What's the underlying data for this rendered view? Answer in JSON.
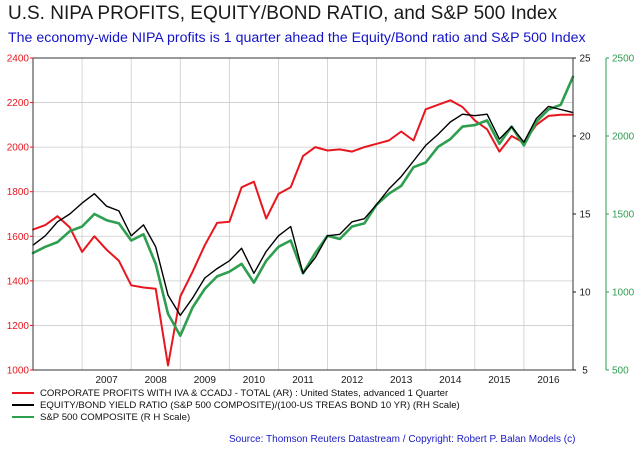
{
  "title": "U.S. NIPA PROFITS, EQUITY/BOND RATIO, and S&P 500 Index",
  "subtitle": "The economy-wide NIPA profits is 1 quarter ahead the Equity/Bond ratio and S&P 500 Index",
  "source": "Source: Thomson Reuters Datastream / Copyright: Robert P. Balan Models (c)",
  "colors": {
    "profits": "#e8161e",
    "ratio": "#000000",
    "sp500": "#2e9e4f",
    "left_axis": "#e8161e",
    "right_axis_inner": "#1a1a1a",
    "right_axis_outer": "#2e9e4f",
    "grid": "#cccccc"
  },
  "legend": [
    {
      "label": "CORPORATE PROFITS WITH IVA & CCADJ - TOTAL (AR) : United States, advanced 1 Quarter",
      "color": "#e8161e"
    },
    {
      "label": "EQUITY/BOND YIELD RATIO (S&P 500 COMPOSITE)/(100-US TREAS BOND 10 YR) (RH Scale)",
      "color": "#000000"
    },
    {
      "label": "S&P 500 COMPOSITE (R H Scale)",
      "color": "#2e9e4f"
    }
  ],
  "chart_data": {
    "type": "line",
    "x_range": [
      2006.0,
      2017.0
    ],
    "x_tick_labels": [
      "2007",
      "2008",
      "2009",
      "2010",
      "2011",
      "2012",
      "2013",
      "2014",
      "2015",
      "2016"
    ],
    "left_axis": {
      "ylim": [
        1000,
        2400
      ],
      "ticks": [
        1000,
        1200,
        1400,
        1600,
        1800,
        2000,
        2200,
        2400
      ]
    },
    "right_axis_inner": {
      "ylim": [
        5,
        25
      ],
      "ticks": [
        5,
        10,
        15,
        20,
        25
      ]
    },
    "right_axis_outer": {
      "ylim": [
        500,
        2500
      ],
      "ticks": [
        500,
        1000,
        1500,
        2000,
        2500
      ]
    },
    "grid": true,
    "series": [
      {
        "name": "CORPORATE PROFITS WITH IVA & CCADJ - TOTAL (AR) : United States, advanced 1 Quarter",
        "axis": "left",
        "x": [
          2006.0,
          2006.25,
          2006.5,
          2006.75,
          2007.0,
          2007.25,
          2007.5,
          2007.75,
          2008.0,
          2008.25,
          2008.5,
          2008.75,
          2009.0,
          2009.25,
          2009.5,
          2009.75,
          2010.0,
          2010.25,
          2010.5,
          2010.75,
          2011.0,
          2011.25,
          2011.5,
          2011.75,
          2012.0,
          2012.25,
          2012.5,
          2012.75,
          2013.0,
          2013.25,
          2013.5,
          2013.75,
          2014.0,
          2014.25,
          2014.5,
          2014.75,
          2015.0,
          2015.25,
          2015.5,
          2015.75,
          2016.0,
          2016.25,
          2016.5,
          2016.75,
          2017.0
        ],
        "y": [
          1630,
          1650,
          1690,
          1640,
          1530,
          1600,
          1540,
          1490,
          1380,
          1370,
          1365,
          1020,
          1330,
          1440,
          1560,
          1660,
          1665,
          1820,
          1845,
          1680,
          1790,
          1820,
          1960,
          2000,
          1985,
          1990,
          1980,
          2000,
          2015,
          2030,
          2070,
          2030,
          2170,
          2190,
          2210,
          2180,
          2120,
          2080,
          1980,
          2050,
          2020,
          2100,
          2140,
          2145,
          2145
        ]
      },
      {
        "name": "EQUITY/BOND YIELD RATIO (S&P 500 COMPOSITE)/(100-US TREAS BOND 10 YR) (RH Scale)",
        "axis": "right_inner",
        "x": [
          2006.0,
          2006.25,
          2006.5,
          2006.75,
          2007.0,
          2007.25,
          2007.5,
          2007.75,
          2008.0,
          2008.25,
          2008.5,
          2008.75,
          2009.0,
          2009.25,
          2009.5,
          2009.75,
          2010.0,
          2010.25,
          2010.5,
          2010.75,
          2011.0,
          2011.25,
          2011.5,
          2011.75,
          2012.0,
          2012.25,
          2012.5,
          2012.75,
          2013.0,
          2013.25,
          2013.5,
          2013.75,
          2014.0,
          2014.25,
          2014.5,
          2014.75,
          2015.0,
          2015.25,
          2015.5,
          2015.75,
          2016.0,
          2016.25,
          2016.5,
          2016.75,
          2017.0
        ],
        "y": [
          13.0,
          13.6,
          14.5,
          15.0,
          15.7,
          16.3,
          15.5,
          15.2,
          13.6,
          14.3,
          12.9,
          9.8,
          8.5,
          9.6,
          10.9,
          11.5,
          12.0,
          12.8,
          11.2,
          12.6,
          13.6,
          14.2,
          11.2,
          12.2,
          13.6,
          13.7,
          14.5,
          14.7,
          15.6,
          16.6,
          17.4,
          18.4,
          19.4,
          20.1,
          20.9,
          21.4,
          21.3,
          21.4,
          19.8,
          20.6,
          19.6,
          21.1,
          21.9,
          21.7,
          21.5
        ]
      },
      {
        "name": "S&P 500 COMPOSITE (R H Scale)",
        "axis": "right_outer",
        "x": [
          2006.0,
          2006.25,
          2006.5,
          2006.75,
          2007.0,
          2007.25,
          2007.5,
          2007.75,
          2008.0,
          2008.25,
          2008.5,
          2008.75,
          2009.0,
          2009.25,
          2009.5,
          2009.75,
          2010.0,
          2010.25,
          2010.5,
          2010.75,
          2011.0,
          2011.25,
          2011.5,
          2011.75,
          2012.0,
          2012.25,
          2012.5,
          2012.75,
          2013.0,
          2013.25,
          2013.5,
          2013.75,
          2014.0,
          2014.25,
          2014.5,
          2014.75,
          2015.0,
          2015.25,
          2015.5,
          2015.75,
          2016.0,
          2016.25,
          2016.5,
          2016.75,
          2017.0
        ],
        "y": [
          1250,
          1290,
          1320,
          1390,
          1420,
          1500,
          1460,
          1440,
          1330,
          1370,
          1180,
          860,
          720,
          900,
          1020,
          1100,
          1130,
          1180,
          1060,
          1200,
          1290,
          1330,
          1120,
          1250,
          1360,
          1340,
          1420,
          1440,
          1560,
          1630,
          1680,
          1800,
          1830,
          1930,
          1980,
          2060,
          2070,
          2100,
          1950,
          2060,
          1940,
          2090,
          2170,
          2200,
          2380
        ]
      }
    ]
  }
}
